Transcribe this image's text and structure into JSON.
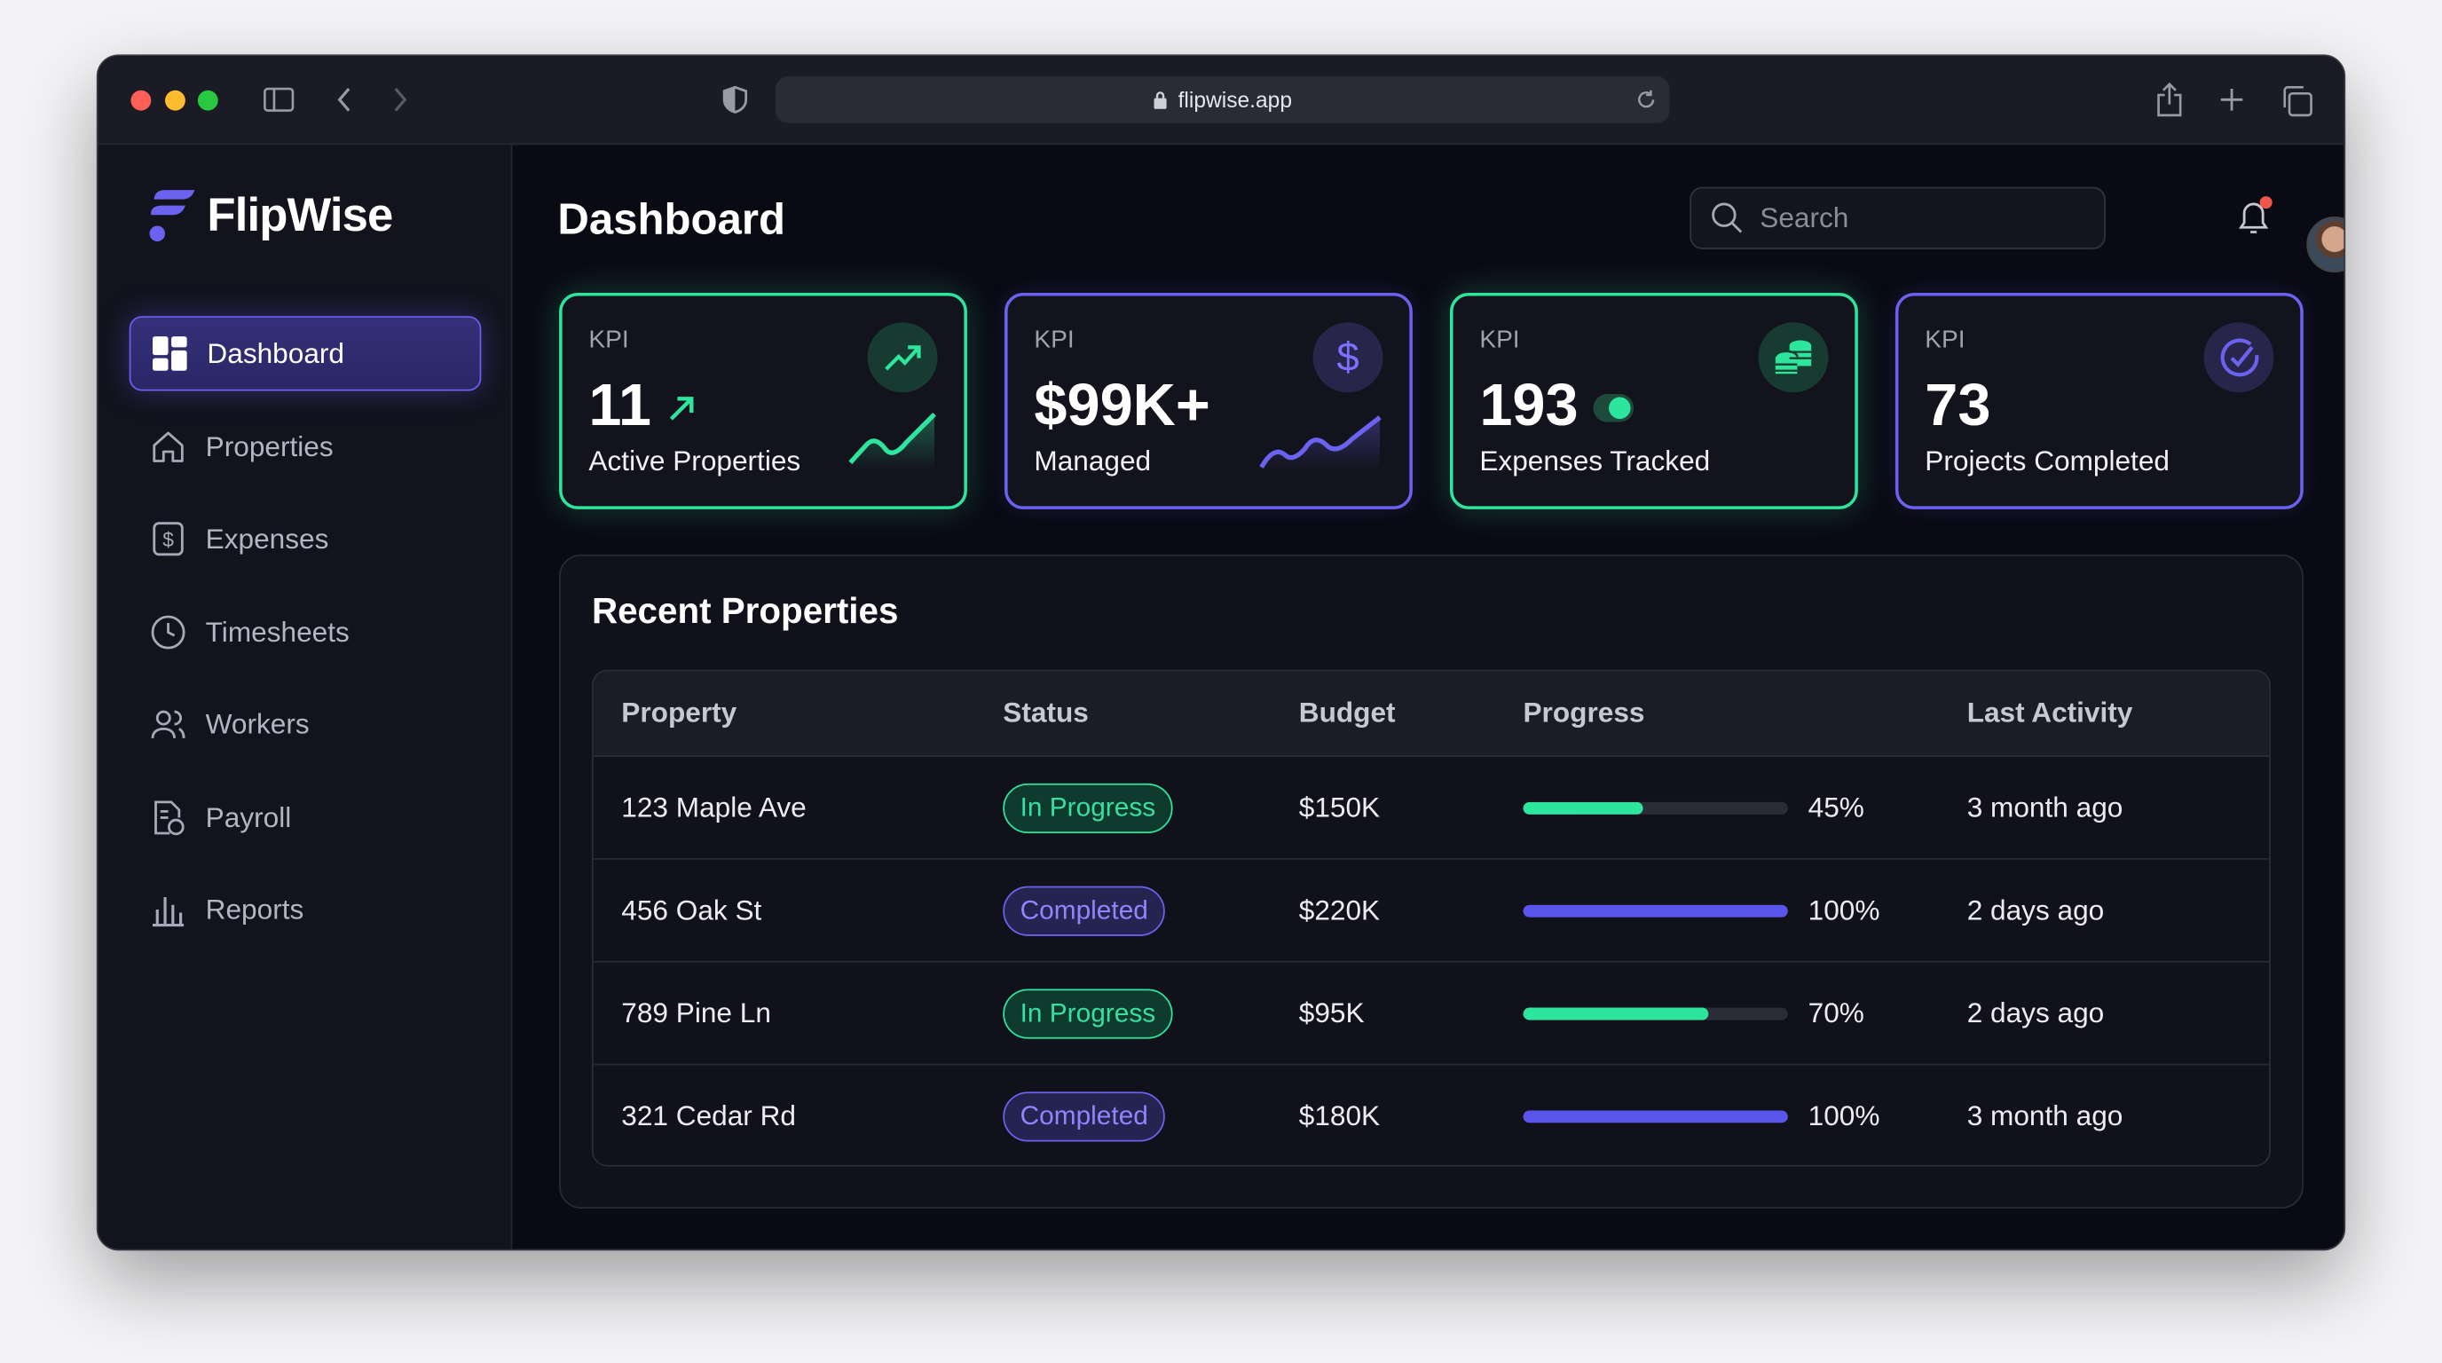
{
  "browser": {
    "url": "flipwise.app"
  },
  "brand": {
    "name": "FlipWise",
    "accent": "#6b63f0",
    "green": "#2ee59d"
  },
  "sidebar": {
    "items": [
      {
        "label": "Dashboard",
        "icon": "dashboard-grid-icon",
        "active": true
      },
      {
        "label": "Properties",
        "icon": "home-icon"
      },
      {
        "label": "Expenses",
        "icon": "dollar-document-icon"
      },
      {
        "label": "Timesheets",
        "icon": "clock-icon"
      },
      {
        "label": "Workers",
        "icon": "users-icon"
      },
      {
        "label": "Payroll",
        "icon": "payroll-document-icon"
      },
      {
        "label": "Reports",
        "icon": "bar-chart-icon"
      }
    ]
  },
  "header": {
    "title": "Dashboard",
    "search_placeholder": "Search",
    "notifications": true
  },
  "kpis": [
    {
      "label": "KPI",
      "value": "11",
      "caption": "Active Properties",
      "icon": "trending-up-icon",
      "color": "green"
    },
    {
      "label": "KPI",
      "value": "$99K+",
      "caption": "Managed",
      "icon": "dollar-icon",
      "color": "purple"
    },
    {
      "label": "KPI",
      "value": "193",
      "caption": "Expenses Tracked",
      "icon": "coins-icon",
      "color": "green"
    },
    {
      "label": "KPI",
      "value": "73",
      "caption": "Projects Completed",
      "icon": "check-circle-icon",
      "color": "purple"
    }
  ],
  "recent": {
    "title": "Recent Properties",
    "columns": [
      "Property",
      "Status",
      "Budget",
      "Progress",
      "Last Activity"
    ],
    "rows": [
      {
        "property": "123 Maple Ave",
        "status": "In Progress",
        "budget": "$150K",
        "progress": 45,
        "progress_label": "45%",
        "last_activity": "3 month ago"
      },
      {
        "property": "456 Oak St",
        "status": "Completed",
        "budget": "$220K",
        "progress": 100,
        "progress_label": "100%",
        "last_activity": "2 days ago"
      },
      {
        "property": "789 Pine Ln",
        "status": "In Progress",
        "budget": "$95K",
        "progress": 70,
        "progress_label": "70%",
        "last_activity": "2 days ago"
      },
      {
        "property": "321 Cedar Rd",
        "status": "Completed",
        "budget": "$180K",
        "progress": 100,
        "progress_label": "100%",
        "last_activity": "3 month ago"
      }
    ]
  }
}
